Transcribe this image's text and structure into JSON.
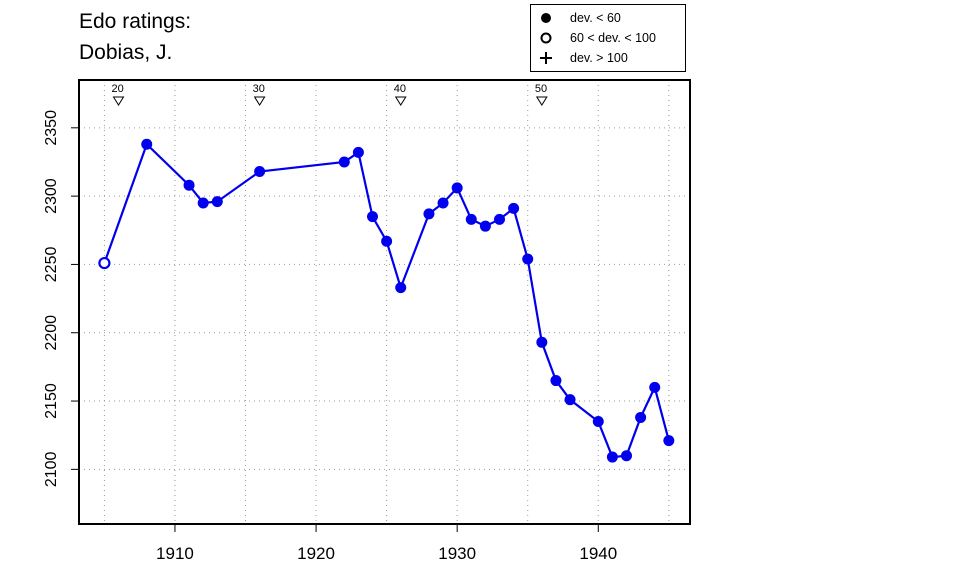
{
  "title": [
    "Edo ratings:",
    "Dobias, J."
  ],
  "legend": {
    "items": [
      {
        "label": "dev. < 60",
        "symbol": "filled-circle"
      },
      {
        "label": "60 < dev. < 100",
        "symbol": "open-circle"
      },
      {
        "label": "dev. > 100",
        "symbol": "plus"
      }
    ],
    "placement": "top-right"
  },
  "colors": {
    "series": "#0000ee",
    "axis": "#000000",
    "grid": "#999999"
  },
  "chart_data": {
    "type": "line",
    "title": "Edo ratings: Dobias, J.",
    "xlabel": "",
    "ylabel": "",
    "xlim": [
      1903.2,
      1946.5
    ],
    "ylim": [
      2060,
      2385
    ],
    "grid": true,
    "xticks": [
      1910,
      1920,
      1930,
      1940
    ],
    "yticks": [
      2100,
      2150,
      2200,
      2250,
      2300,
      2350
    ],
    "series": [
      {
        "x": [
          1905,
          1908,
          1911,
          1912,
          1913,
          1916,
          1922,
          1923,
          1924,
          1925,
          1926,
          1928,
          1929,
          1930,
          1931,
          1932,
          1933,
          1934,
          1935,
          1936,
          1937,
          1938,
          1940,
          1941,
          1942,
          1943,
          1944,
          1945
        ],
        "y": [
          2251,
          2338,
          2308,
          2295,
          2296,
          2318,
          2325,
          2332,
          2285,
          2267,
          2233,
          2287,
          2295,
          2306,
          2283,
          2278,
          2283,
          2291,
          2254,
          2193,
          2165,
          2151,
          2135,
          2109,
          2110,
          2138,
          2160,
          2121
        ],
        "deviation": [
          "60-100",
          "<60",
          "<60",
          "<60",
          "<60",
          "<60",
          "<60",
          "<60",
          "<60",
          "<60",
          "<60",
          "<60",
          "<60",
          "<60",
          "<60",
          "<60",
          "<60",
          "<60",
          "<60",
          "<60",
          "<60",
          "<60",
          "<60",
          "<60",
          "<60",
          "<60",
          "<60",
          "<60"
        ]
      }
    ],
    "game_markers": [
      {
        "label": "20",
        "x": 1906
      },
      {
        "label": "30",
        "x": 1916
      },
      {
        "label": "40",
        "x": 1926
      },
      {
        "label": "50",
        "x": 1936
      }
    ]
  }
}
